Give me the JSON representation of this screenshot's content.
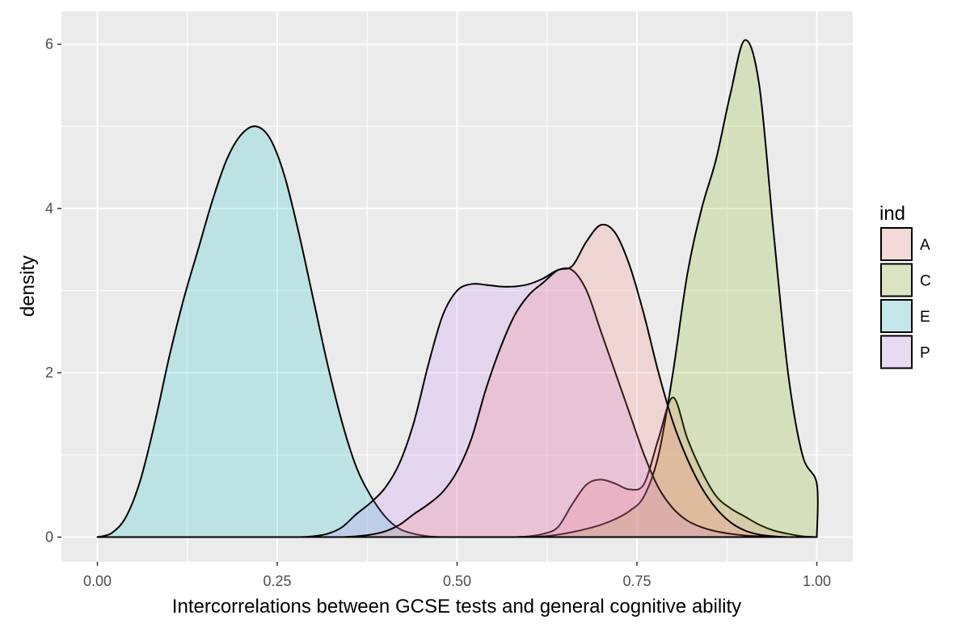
{
  "chart_data": {
    "type": "area",
    "subtype": "density",
    "title": "",
    "xlabel": "Intercorrelations between GCSE tests and general cognitive ability",
    "ylabel": "density",
    "xlim": [
      -0.05,
      1.05
    ],
    "ylim": [
      -0.3,
      6.4
    ],
    "x_ticks": [
      0,
      0.25,
      0.5,
      0.75,
      1.0
    ],
    "x_tick_labels": [
      "0.00",
      "0.25",
      "0.50",
      "0.75",
      "1.00"
    ],
    "y_ticks": [
      0,
      2,
      4,
      6
    ],
    "y_tick_labels": [
      "0",
      "2",
      "4",
      "6"
    ],
    "grid": true,
    "legend": {
      "title": "ind",
      "position": "right"
    },
    "series": [
      {
        "name": "A",
        "color": "#F8766D",
        "x": [
          0.58,
          0.6,
          0.62,
          0.64,
          0.66,
          0.68,
          0.7,
          0.72,
          0.74,
          0.76,
          0.78,
          0.8,
          0.82,
          0.84,
          0.86,
          0.88,
          0.9,
          0.92,
          0.94,
          0.96,
          0.98,
          1.0
        ],
        "y": [
          0.0,
          0.01,
          0.04,
          0.12,
          0.4,
          0.64,
          0.7,
          0.65,
          0.58,
          0.65,
          1.2,
          1.7,
          1.2,
          0.8,
          0.5,
          0.35,
          0.25,
          0.15,
          0.08,
          0.04,
          0.01,
          0.0
        ]
      },
      {
        "name": "C",
        "color": "#7CAE00",
        "x": [
          0.58,
          0.6,
          0.62,
          0.64,
          0.66,
          0.68,
          0.7,
          0.72,
          0.74,
          0.76,
          0.78,
          0.8,
          0.82,
          0.84,
          0.86,
          0.88,
          0.9,
          0.92,
          0.94,
          0.96,
          0.98,
          1.0,
          1.0
        ],
        "y": [
          0.0,
          0.005,
          0.01,
          0.03,
          0.06,
          0.1,
          0.15,
          0.22,
          0.32,
          0.5,
          1.0,
          2.0,
          3.2,
          4.0,
          4.6,
          5.4,
          6.05,
          5.5,
          3.7,
          2.0,
          1.0,
          0.65,
          0.0
        ]
      },
      {
        "name": "E",
        "color": "#00BFC4",
        "x": [
          0.0,
          0.02,
          0.04,
          0.06,
          0.08,
          0.1,
          0.12,
          0.14,
          0.16,
          0.18,
          0.2,
          0.22,
          0.24,
          0.26,
          0.28,
          0.3,
          0.32,
          0.34,
          0.36,
          0.38,
          0.4,
          0.42,
          0.44,
          0.46,
          0.48,
          0.5
        ],
        "y": [
          0.0,
          0.05,
          0.25,
          0.7,
          1.4,
          2.2,
          2.9,
          3.5,
          4.1,
          4.6,
          4.9,
          5.0,
          4.85,
          4.4,
          3.7,
          2.9,
          2.1,
          1.4,
          0.85,
          0.5,
          0.25,
          0.1,
          0.04,
          0.01,
          0.0,
          0.0
        ]
      },
      {
        "name": "P",
        "color": "#C77CFF",
        "x": [
          0.28,
          0.3,
          0.32,
          0.34,
          0.36,
          0.38,
          0.4,
          0.42,
          0.44,
          0.46,
          0.48,
          0.5,
          0.52,
          0.54,
          0.56,
          0.58,
          0.6,
          0.62,
          0.64,
          0.66,
          0.68,
          0.7,
          0.72,
          0.74,
          0.76,
          0.78,
          0.8,
          0.82,
          0.84,
          0.86,
          0.88,
          0.9,
          0.92,
          0.94,
          0.96,
          0.98,
          1.0
        ],
        "y": [
          0.0,
          0.01,
          0.04,
          0.12,
          0.28,
          0.42,
          0.6,
          0.9,
          1.4,
          2.1,
          2.7,
          3.0,
          3.08,
          3.07,
          3.05,
          3.05,
          3.08,
          3.15,
          3.25,
          3.25,
          3.0,
          2.5,
          2.0,
          1.5,
          1.0,
          0.6,
          0.35,
          0.2,
          0.12,
          0.07,
          0.04,
          0.02,
          0.01,
          0.005,
          0.0,
          0.0,
          0.0
        ]
      },
      {
        "name": "A",
        "color": "#F8766D",
        "x": [
          0.34,
          0.36,
          0.38,
          0.4,
          0.42,
          0.44,
          0.46,
          0.48,
          0.5,
          0.52,
          0.54,
          0.56,
          0.58,
          0.6,
          0.62,
          0.64,
          0.66,
          0.68,
          0.7,
          0.72,
          0.74,
          0.76,
          0.78,
          0.8,
          0.82,
          0.84,
          0.86,
          0.88,
          0.9,
          0.92,
          0.94,
          0.96,
          0.98,
          1.0
        ],
        "y": [
          0.0,
          0.01,
          0.03,
          0.07,
          0.15,
          0.28,
          0.4,
          0.55,
          0.8,
          1.2,
          1.8,
          2.3,
          2.7,
          2.95,
          3.1,
          3.25,
          3.3,
          3.6,
          3.8,
          3.7,
          3.3,
          2.7,
          2.0,
          1.4,
          0.95,
          0.6,
          0.35,
          0.18,
          0.08,
          0.03,
          0.01,
          0.0,
          0.0,
          0.0
        ]
      }
    ]
  }
}
